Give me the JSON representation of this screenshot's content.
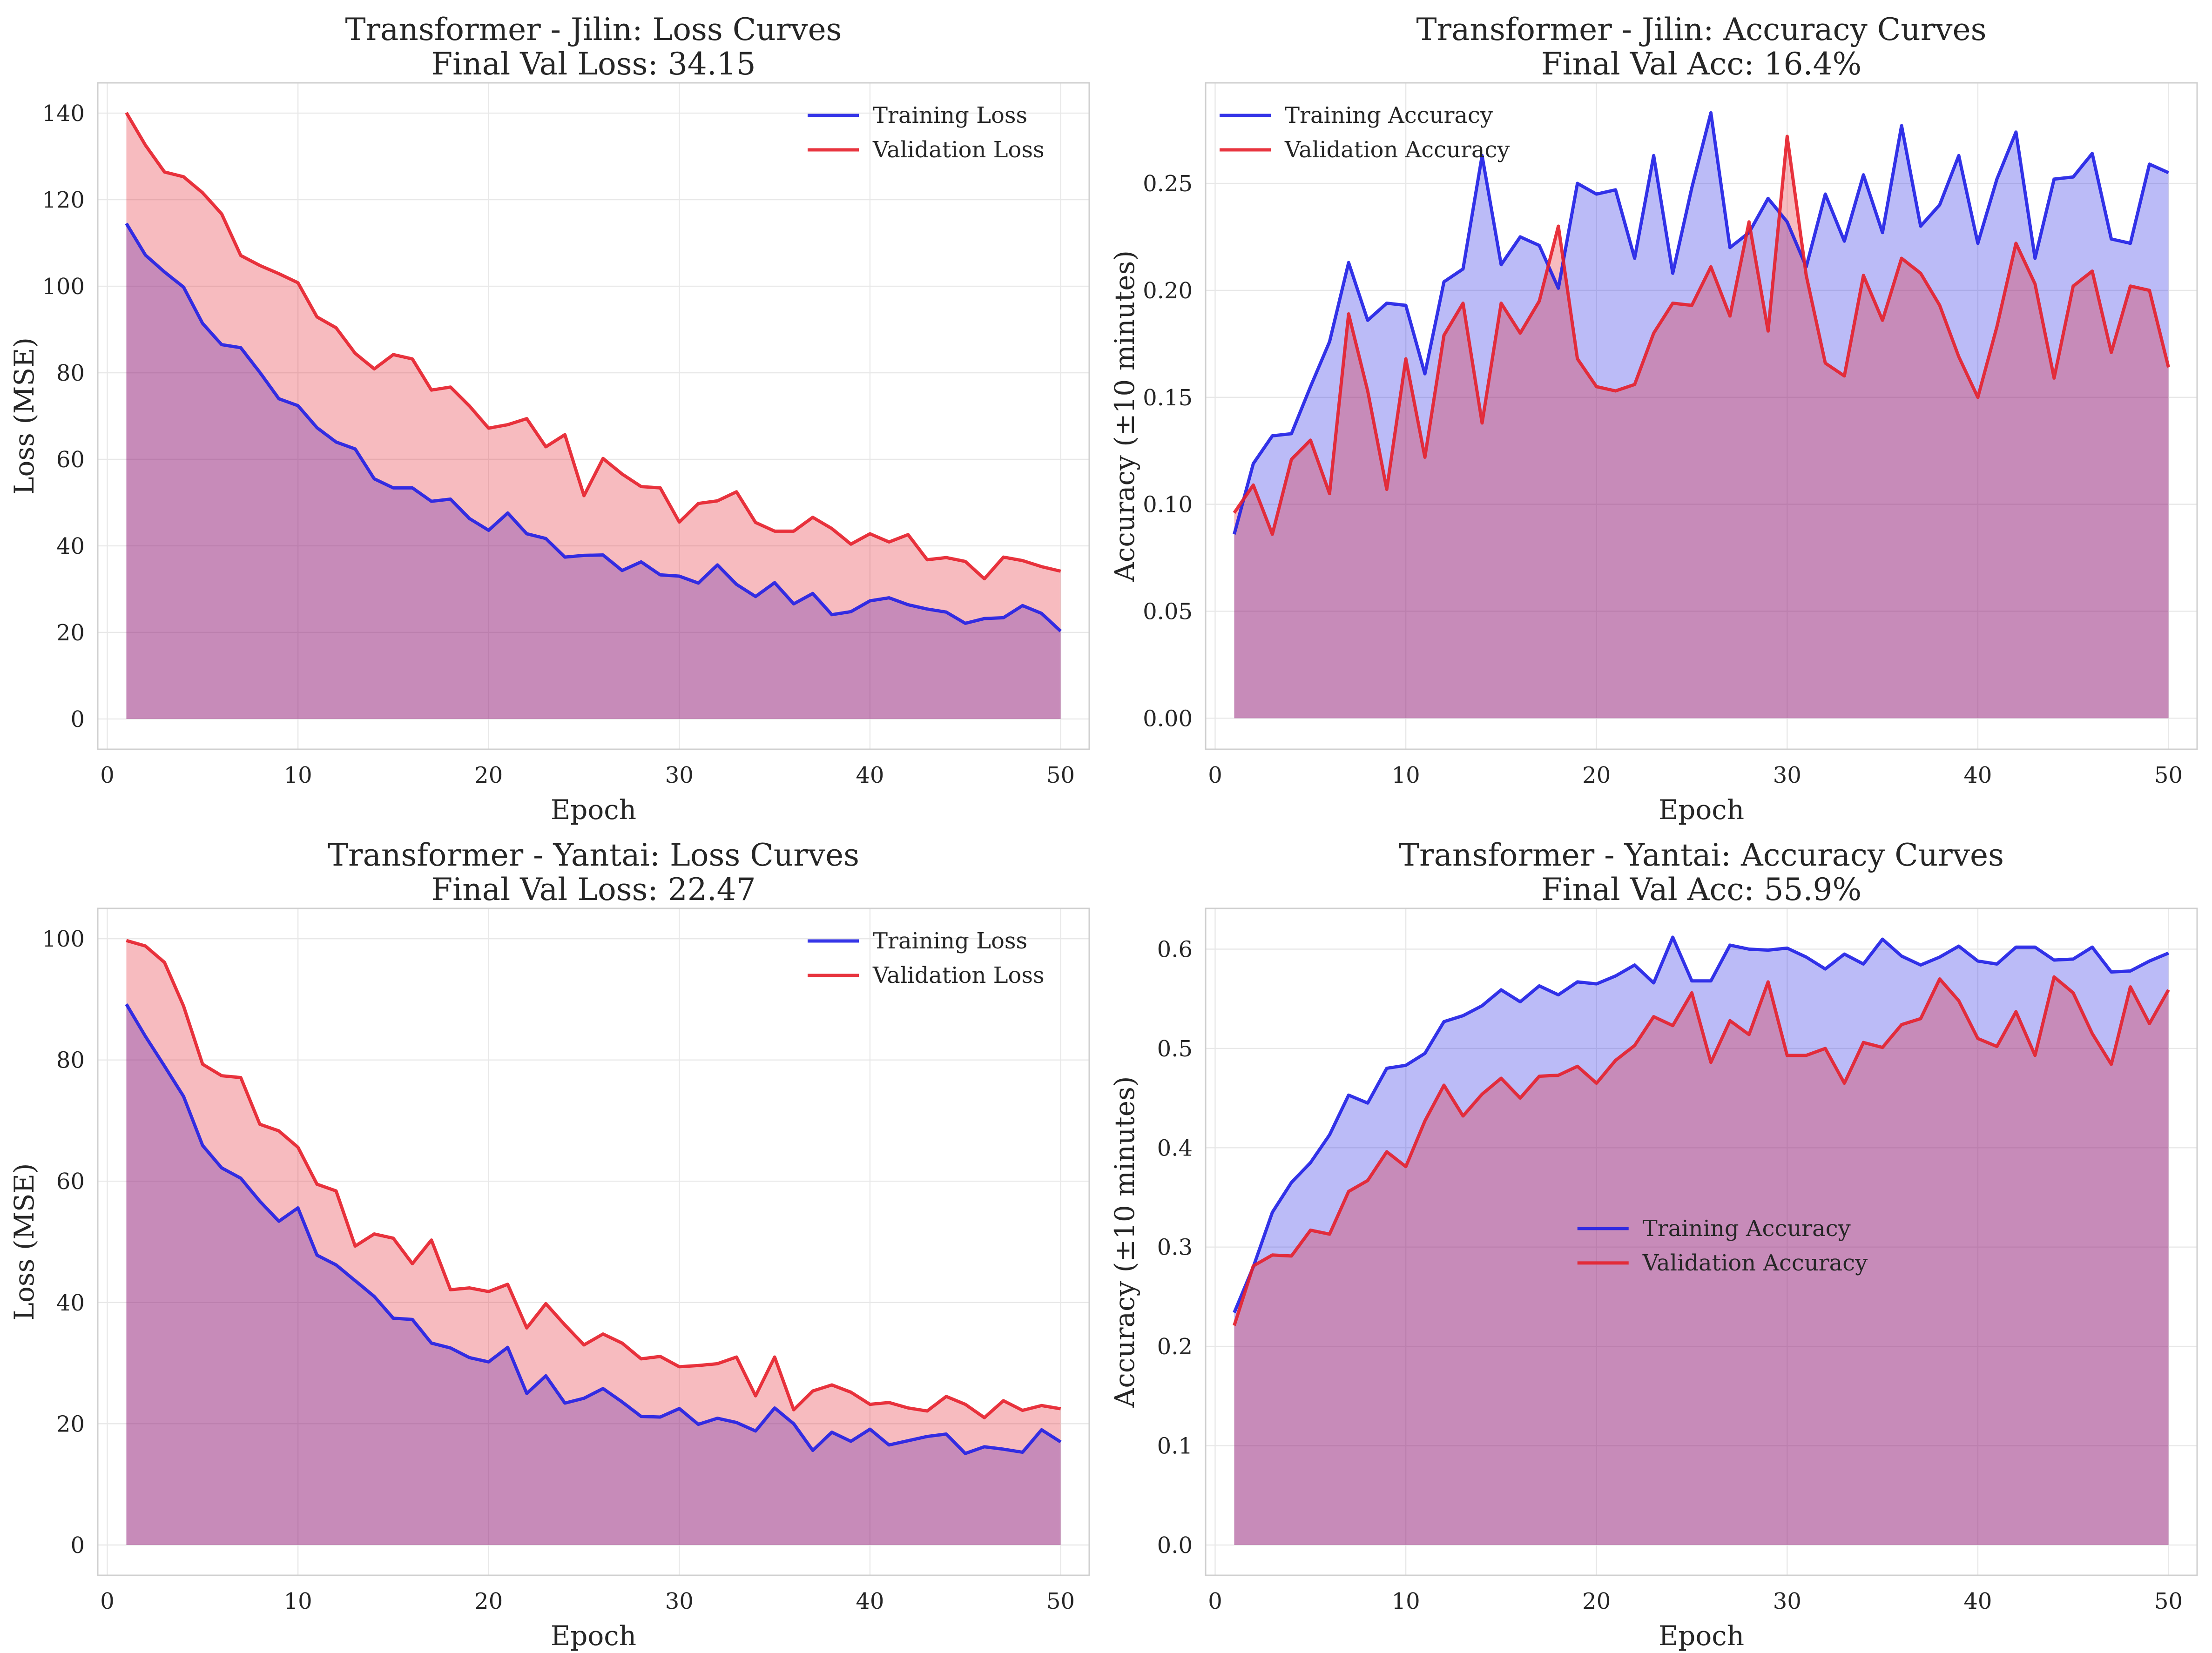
{
  "colors": {
    "training": "#1f1fe6",
    "validation": "#e61f2a",
    "training_fill": "#7f84ff",
    "validation_fill": "#ff7f7f",
    "overlap_fill": "#b0508f",
    "grid": "#e8e8e8",
    "axes_edge": "#cfcfcf",
    "text": "#262626"
  },
  "chart_data": [
    {
      "type": "line",
      "panel": "top-left",
      "title": "Transformer - Jilin: Loss Curves",
      "subtitle": "Final Val Loss: 34.15",
      "xlabel": "Epoch",
      "ylabel": "Loss (MSE)",
      "xlim": [
        -0.5,
        51.5
      ],
      "ylim": [
        -7,
        147
      ],
      "xticks": [
        0,
        10,
        20,
        30,
        40,
        50
      ],
      "xtick_labels": [
        "0",
        "10",
        "20",
        "30",
        "40",
        "50"
      ],
      "yticks": [
        0,
        20,
        40,
        60,
        80,
        100,
        120,
        140
      ],
      "ytick_labels": [
        "0",
        "20",
        "40",
        "60",
        "80",
        "100",
        "120",
        "140"
      ],
      "grid": true,
      "legend_position": "upper right",
      "fill_under": true,
      "x": [
        1,
        2,
        3,
        4,
        5,
        6,
        7,
        8,
        9,
        10,
        11,
        12,
        13,
        14,
        15,
        16,
        17,
        18,
        19,
        20,
        21,
        22,
        23,
        24,
        25,
        26,
        27,
        28,
        29,
        30,
        31,
        32,
        33,
        34,
        35,
        36,
        37,
        38,
        39,
        40,
        41,
        42,
        43,
        44,
        45,
        46,
        47,
        48,
        49,
        50
      ],
      "series": [
        {
          "name": "Training Loss",
          "role": "training",
          "values": [
            114.5,
            107.2,
            103.3,
            99.8,
            91.4,
            86.5,
            85.8,
            80.1,
            74.0,
            72.4,
            67.3,
            64.0,
            62.4,
            55.5,
            53.4,
            53.4,
            50.3,
            50.8,
            46.3,
            43.6,
            47.6,
            42.8,
            41.7,
            37.4,
            37.8,
            37.9,
            34.3,
            36.3,
            33.3,
            33.0,
            31.4,
            35.6,
            31.1,
            28.3,
            31.5,
            26.6,
            29.0,
            24.1,
            24.8,
            27.3,
            28.0,
            26.4,
            25.4,
            24.7,
            22.1,
            23.2,
            23.4,
            26.2,
            24.4,
            20.3
          ]
        },
        {
          "name": "Validation Loss",
          "role": "validation",
          "values": [
            140.1,
            132.6,
            126.4,
            125.3,
            121.6,
            116.7,
            107.1,
            104.8,
            102.9,
            100.8,
            92.9,
            90.4,
            84.5,
            80.9,
            84.2,
            83.2,
            76.0,
            76.7,
            72.3,
            67.2,
            68.0,
            69.4,
            62.9,
            65.7,
            51.6,
            60.2,
            56.6,
            53.7,
            53.4,
            45.5,
            49.8,
            50.4,
            52.5,
            45.4,
            43.4,
            43.4,
            46.6,
            44.0,
            40.4,
            42.8,
            40.9,
            42.6,
            36.8,
            37.3,
            36.4,
            32.4,
            37.4,
            36.6,
            35.2,
            34.15
          ]
        }
      ]
    },
    {
      "type": "line",
      "panel": "top-right",
      "title": "Transformer - Jilin: Accuracy Curves",
      "subtitle": "Final Val Acc: 16.4%",
      "xlabel": "Epoch",
      "ylabel": "Accuracy (±10 minutes)",
      "xlim": [
        -0.5,
        51.5
      ],
      "ylim": [
        -0.0145,
        0.297
      ],
      "xticks": [
        0,
        10,
        20,
        30,
        40,
        50
      ],
      "xtick_labels": [
        "0",
        "10",
        "20",
        "30",
        "40",
        "50"
      ],
      "yticks": [
        0,
        0.05,
        0.1,
        0.15,
        0.2,
        0.25
      ],
      "ytick_labels": [
        "0.00",
        "0.05",
        "0.10",
        "0.15",
        "0.20",
        "0.25"
      ],
      "grid": true,
      "legend_position": "upper left",
      "fill_under": true,
      "x": [
        1,
        2,
        3,
        4,
        5,
        6,
        7,
        8,
        9,
        10,
        11,
        12,
        13,
        14,
        15,
        16,
        17,
        18,
        19,
        20,
        21,
        22,
        23,
        24,
        25,
        26,
        27,
        28,
        29,
        30,
        31,
        32,
        33,
        34,
        35,
        36,
        37,
        38,
        39,
        40,
        41,
        42,
        43,
        44,
        45,
        46,
        47,
        48,
        49,
        50
      ],
      "series": [
        {
          "name": "Training Accuracy",
          "role": "training",
          "values": [
            0.086,
            0.119,
            0.132,
            0.133,
            0.155,
            0.176,
            0.213,
            0.186,
            0.194,
            0.193,
            0.161,
            0.204,
            0.21,
            0.263,
            0.212,
            0.225,
            0.221,
            0.201,
            0.25,
            0.245,
            0.247,
            0.215,
            0.263,
            0.208,
            0.248,
            0.283,
            0.22,
            0.227,
            0.243,
            0.232,
            0.211,
            0.245,
            0.223,
            0.254,
            0.227,
            0.277,
            0.23,
            0.24,
            0.263,
            0.222,
            0.252,
            0.274,
            0.215,
            0.252,
            0.253,
            0.264,
            0.224,
            0.222,
            0.259,
            0.255
          ]
        },
        {
          "name": "Validation Accuracy",
          "role": "validation",
          "values": [
            0.096,
            0.109,
            0.086,
            0.121,
            0.13,
            0.105,
            0.189,
            0.153,
            0.107,
            0.168,
            0.122,
            0.179,
            0.194,
            0.138,
            0.194,
            0.18,
            0.195,
            0.23,
            0.168,
            0.155,
            0.153,
            0.156,
            0.18,
            0.194,
            0.193,
            0.211,
            0.188,
            0.232,
            0.181,
            0.272,
            0.207,
            0.166,
            0.16,
            0.207,
            0.186,
            0.215,
            0.208,
            0.193,
            0.169,
            0.15,
            0.183,
            0.222,
            0.203,
            0.159,
            0.202,
            0.209,
            0.171,
            0.202,
            0.2,
            0.164
          ]
        }
      ]
    },
    {
      "type": "line",
      "panel": "bottom-left",
      "title": "Transformer - Yantai: Loss Curves",
      "subtitle": "Final Val Loss: 22.47",
      "xlabel": "Epoch",
      "ylabel": "Loss (MSE)",
      "xlim": [
        -0.5,
        51.5
      ],
      "ylim": [
        -5,
        105
      ],
      "xticks": [
        0,
        10,
        20,
        30,
        40,
        50
      ],
      "xtick_labels": [
        "0",
        "10",
        "20",
        "30",
        "40",
        "50"
      ],
      "yticks": [
        0,
        20,
        40,
        60,
        80,
        100
      ],
      "ytick_labels": [
        "0",
        "20",
        "40",
        "60",
        "80",
        "100"
      ],
      "grid": true,
      "legend_position": "upper right",
      "fill_under": true,
      "x": [
        1,
        2,
        3,
        4,
        5,
        6,
        7,
        8,
        9,
        10,
        11,
        12,
        13,
        14,
        15,
        16,
        17,
        18,
        19,
        20,
        21,
        22,
        23,
        24,
        25,
        26,
        27,
        28,
        29,
        30,
        31,
        32,
        33,
        34,
        35,
        36,
        37,
        38,
        39,
        40,
        41,
        42,
        43,
        44,
        45,
        46,
        47,
        48,
        49,
        50
      ],
      "series": [
        {
          "name": "Training Loss",
          "role": "training",
          "values": [
            89.2,
            83.9,
            79.0,
            74.0,
            65.9,
            62.2,
            60.5,
            56.7,
            53.4,
            55.6,
            47.8,
            46.2,
            43.6,
            41.0,
            37.4,
            37.2,
            33.3,
            32.5,
            30.9,
            30.2,
            32.6,
            25.0,
            27.9,
            23.4,
            24.2,
            25.8,
            23.6,
            21.2,
            21.1,
            22.5,
            19.9,
            20.9,
            20.2,
            18.8,
            22.6,
            20.0,
            15.6,
            18.6,
            17.1,
            19.1,
            16.5,
            17.2,
            17.9,
            18.3,
            15.1,
            16.2,
            15.8,
            15.3,
            19.0,
            17.0
          ]
        },
        {
          "name": "Validation Loss",
          "role": "validation",
          "values": [
            99.7,
            98.8,
            96.1,
            88.9,
            79.3,
            77.4,
            77.1,
            69.4,
            68.3,
            65.6,
            59.5,
            58.4,
            49.3,
            51.3,
            50.6,
            46.4,
            50.3,
            42.1,
            42.4,
            41.8,
            43.0,
            35.8,
            39.8,
            36.3,
            33.0,
            34.8,
            33.3,
            30.7,
            31.1,
            29.4,
            29.6,
            29.9,
            31.0,
            24.6,
            31.0,
            22.3,
            25.4,
            26.4,
            25.2,
            23.2,
            23.5,
            22.6,
            22.1,
            24.5,
            23.2,
            21.0,
            23.8,
            22.2,
            23.0,
            22.47
          ]
        }
      ]
    },
    {
      "type": "line",
      "panel": "bottom-right",
      "title": "Transformer - Yantai: Accuracy Curves",
      "subtitle": "Final Val Acc: 55.9%",
      "xlabel": "Epoch",
      "ylabel": "Accuracy (±10 minutes)",
      "xlim": [
        -0.5,
        51.5
      ],
      "ylim": [
        -0.0305,
        0.641
      ],
      "xticks": [
        0,
        10,
        20,
        30,
        40,
        50
      ],
      "xtick_labels": [
        "0",
        "10",
        "20",
        "30",
        "40",
        "50"
      ],
      "yticks": [
        0,
        0.1,
        0.2,
        0.3,
        0.4,
        0.5,
        0.6
      ],
      "ytick_labels": [
        "0.0",
        "0.1",
        "0.2",
        "0.3",
        "0.4",
        "0.5",
        "0.6"
      ],
      "grid": true,
      "legend_position": "center",
      "fill_under": true,
      "x": [
        1,
        2,
        3,
        4,
        5,
        6,
        7,
        8,
        9,
        10,
        11,
        12,
        13,
        14,
        15,
        16,
        17,
        18,
        19,
        20,
        21,
        22,
        23,
        24,
        25,
        26,
        27,
        28,
        29,
        30,
        31,
        32,
        33,
        34,
        35,
        36,
        37,
        38,
        39,
        40,
        41,
        42,
        43,
        44,
        45,
        46,
        47,
        48,
        49,
        50
      ],
      "series": [
        {
          "name": "Training Accuracy",
          "role": "training",
          "values": [
            0.234,
            0.28,
            0.335,
            0.365,
            0.385,
            0.413,
            0.453,
            0.445,
            0.48,
            0.483,
            0.495,
            0.527,
            0.533,
            0.543,
            0.559,
            0.547,
            0.563,
            0.554,
            0.567,
            0.565,
            0.573,
            0.584,
            0.566,
            0.612,
            0.568,
            0.568,
            0.604,
            0.6,
            0.599,
            0.601,
            0.592,
            0.58,
            0.595,
            0.585,
            0.61,
            0.593,
            0.584,
            0.592,
            0.603,
            0.588,
            0.585,
            0.602,
            0.602,
            0.589,
            0.59,
            0.602,
            0.577,
            0.578,
            0.588,
            0.596
          ]
        },
        {
          "name": "Validation Accuracy",
          "role": "validation",
          "values": [
            0.221,
            0.281,
            0.292,
            0.291,
            0.317,
            0.313,
            0.356,
            0.367,
            0.396,
            0.381,
            0.427,
            0.463,
            0.432,
            0.454,
            0.47,
            0.45,
            0.472,
            0.473,
            0.482,
            0.465,
            0.488,
            0.503,
            0.532,
            0.523,
            0.556,
            0.486,
            0.528,
            0.514,
            0.567,
            0.493,
            0.493,
            0.5,
            0.465,
            0.506,
            0.501,
            0.524,
            0.53,
            0.57,
            0.548,
            0.51,
            0.502,
            0.537,
            0.493,
            0.572,
            0.556,
            0.515,
            0.484,
            0.562,
            0.525,
            0.559
          ]
        }
      ]
    }
  ]
}
